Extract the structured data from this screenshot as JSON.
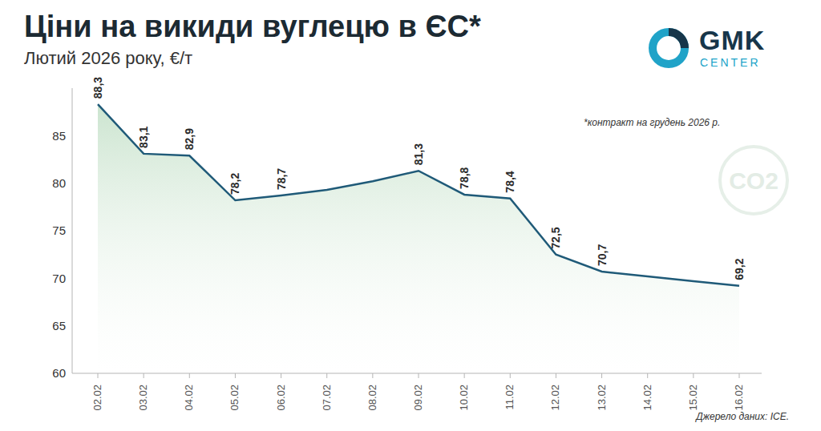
{
  "chart_data": {
    "type": "area",
    "title": "Ціни на викиди вуглецю в ЄС*",
    "subtitle": "Лютий 2026 року, €/т",
    "annotations": [
      "*контракт на грудень 2026 р.",
      "Джерело даних: ICE."
    ],
    "logo": [
      "GMK",
      "CENTER"
    ],
    "illustration_text": "CO2",
    "categories": [
      "02.02",
      "03.02",
      "04.02",
      "05.02",
      "06.02",
      "07.02",
      "08.02",
      "09.02",
      "10.02",
      "11.02",
      "12.02",
      "13.02",
      "14.02",
      "15.02",
      "16.02"
    ],
    "values": [
      88.3,
      83.1,
      82.9,
      78.2,
      78.7,
      79.3,
      80.2,
      81.3,
      78.8,
      78.4,
      72.5,
      70.7,
      70.2,
      69.7,
      69.2
    ],
    "value_labels": [
      "88,3",
      "83,1",
      "82,9",
      "78,2",
      "78,7",
      null,
      null,
      "81,3",
      "78,8",
      "78,4",
      "72,5",
      "70,7",
      null,
      null,
      "69,2"
    ],
    "color": "#1f5a78",
    "ylim": [
      60,
      90
    ],
    "yticks": [
      60,
      65,
      70,
      75,
      80,
      85
    ],
    "grid": false,
    "data_labels": true
  }
}
